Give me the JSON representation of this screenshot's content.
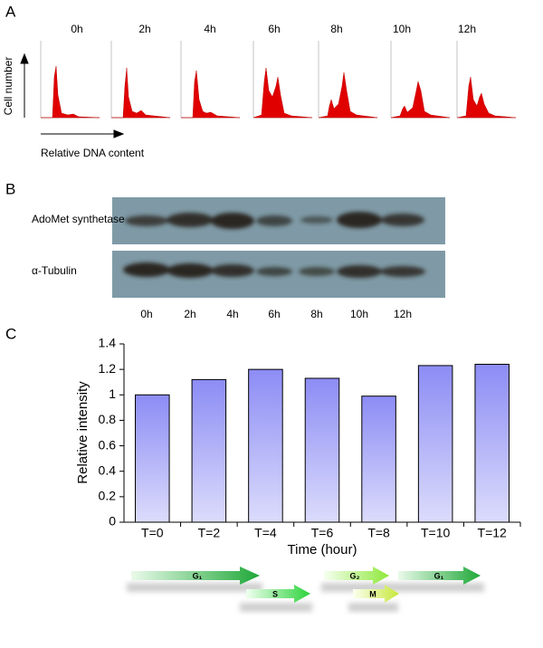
{
  "panel_labels": [
    "A",
    "B",
    "C"
  ],
  "flow": {
    "times": [
      "0h",
      "2h",
      "4h",
      "6h",
      "8h",
      "10h",
      "12h"
    ],
    "y_label": "Cell number",
    "x_label": "Relative DNA content"
  },
  "blot": {
    "rows": [
      "AdoMet synthetase",
      "α-Tubulin"
    ],
    "lanes": [
      "0h",
      "2h",
      "4h",
      "6h",
      "8h",
      "10h",
      "12h"
    ]
  },
  "chart_data": {
    "type": "bar",
    "x_label": "Time (hour)",
    "y_label": "Relative intensity",
    "categories": [
      "T=0",
      "T=2",
      "T=4",
      "T=6",
      "T=8",
      "T=10",
      "T=12"
    ],
    "values": [
      1.0,
      1.12,
      1.2,
      1.13,
      0.99,
      1.23,
      1.24
    ],
    "ylim": [
      0,
      1.4
    ],
    "yticks": [
      0,
      0.2,
      0.4,
      0.6,
      0.8,
      1,
      1.2,
      1.4
    ],
    "color": "#8c8cf5"
  },
  "phases": [
    "G₁",
    "S",
    "G₂",
    "M",
    "G₁"
  ]
}
